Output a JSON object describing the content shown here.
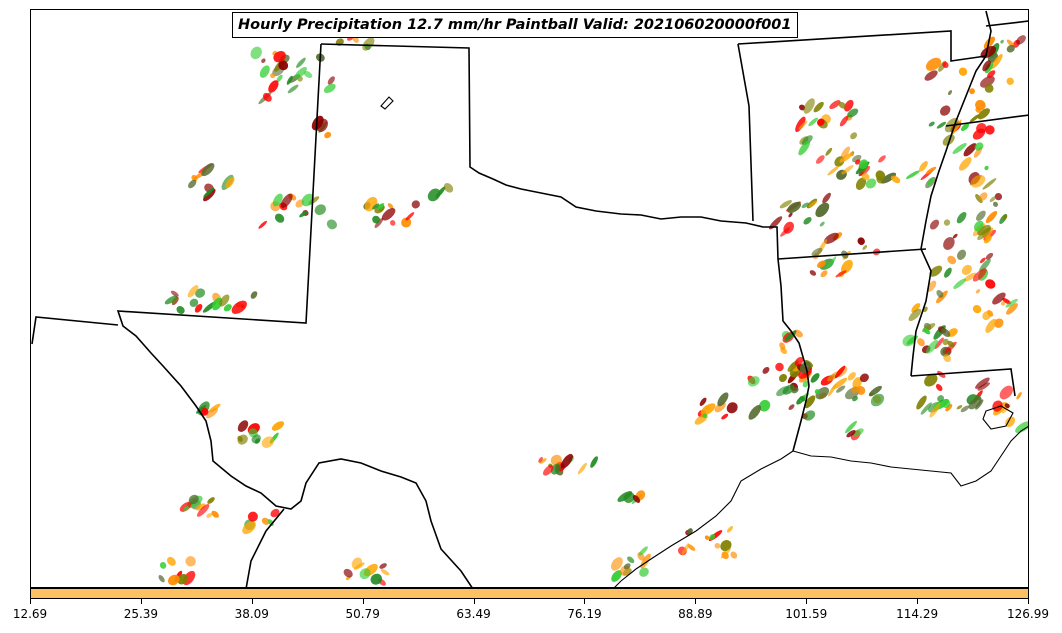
{
  "title": "Hourly Precipitation 12.7 mm/hr Paintball Valid: 202106020000f001",
  "colorbar": {
    "color": "#fdc062",
    "ticks": [
      "12.69",
      "25.39",
      "38.09",
      "50.79",
      "63.49",
      "76.19",
      "88.89",
      "101.59",
      "114.29",
      "126.99"
    ]
  },
  "paint_colors": [
    "#ff8c00",
    "#ff0000",
    "#32cd32",
    "#228b22",
    "#808000",
    "#8b0000",
    "#ffa500",
    "#556b2f"
  ]
}
